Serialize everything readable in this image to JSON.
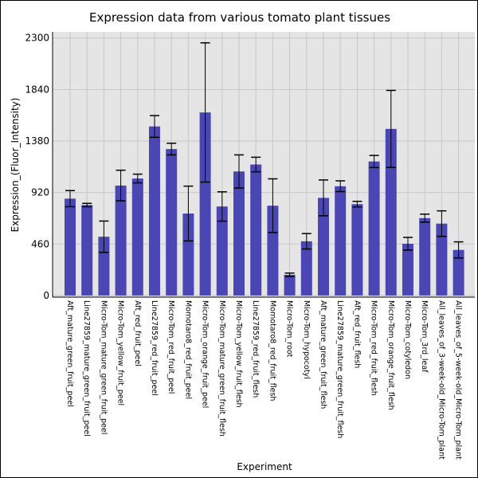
{
  "chart_data": {
    "type": "bar",
    "title": "Expression data from various tomato plant tissues",
    "xlabel": "Experiment",
    "ylabel": "Expression_(Fluor_Intensity)",
    "ylim": [
      -15,
      2355
    ],
    "yticks": [
      0,
      460,
      920,
      1380,
      1840,
      2300
    ],
    "grid": true,
    "bar_color": "#4a46b4",
    "background_color": "#e5e5e5",
    "grid_color": "#c8c8c8",
    "categories": [
      "Aft_mature_green_fruit_peel",
      "Line27859_mature_green_fruit_peel",
      "Micro-Tom_mature_green_fruit_peel",
      "Micro-Tom_yellow_fruit_peel",
      "Aft_red_fruit_peel",
      "Line27859_red_fruit_peel",
      "Micro-Tom_red_fruit_peel",
      "Momotaro8_red_fruit_peel",
      "Micro-Tom_orange_fruit_peel",
      "Micro-Tom_mature_green_fruit_flesh",
      "Micro-Tom_yellow_fruit_flesh",
      "Line27859_red_fruit_flesh",
      "Momotaro8_red_fruit_flesh",
      "Micro-Tom_root",
      "Micro-Tom_hypocotyl",
      "Aft_mature_green_fruit_flesh",
      "Line27859_mature_green_fruit_flesh",
      "Aft_red_fruit_flesh",
      "Micro-Tom_red_fruit_flesh",
      "Micro-Tom_orange_fruit_flesh",
      "Micro-Tom_cotyledon",
      "Micro-Tom_3rd_leaf",
      "All_leaves_of_3-week-old_Micro-Tom_plant",
      "All_leaves_of_5-week-old_Micro-Tom_plant"
    ],
    "values": [
      865,
      808,
      525,
      982,
      1045,
      1510,
      1308,
      732,
      1635,
      795,
      1108,
      1170,
      802,
      185,
      484,
      872,
      976,
      816,
      1197,
      1488,
      462,
      691,
      642,
      407
    ],
    "errors": [
      72,
      15,
      140,
      137,
      39,
      97,
      52,
      245,
      622,
      131,
      148,
      65,
      240,
      15,
      69,
      160,
      48,
      25,
      54,
      344,
      57,
      36,
      114,
      72
    ]
  }
}
